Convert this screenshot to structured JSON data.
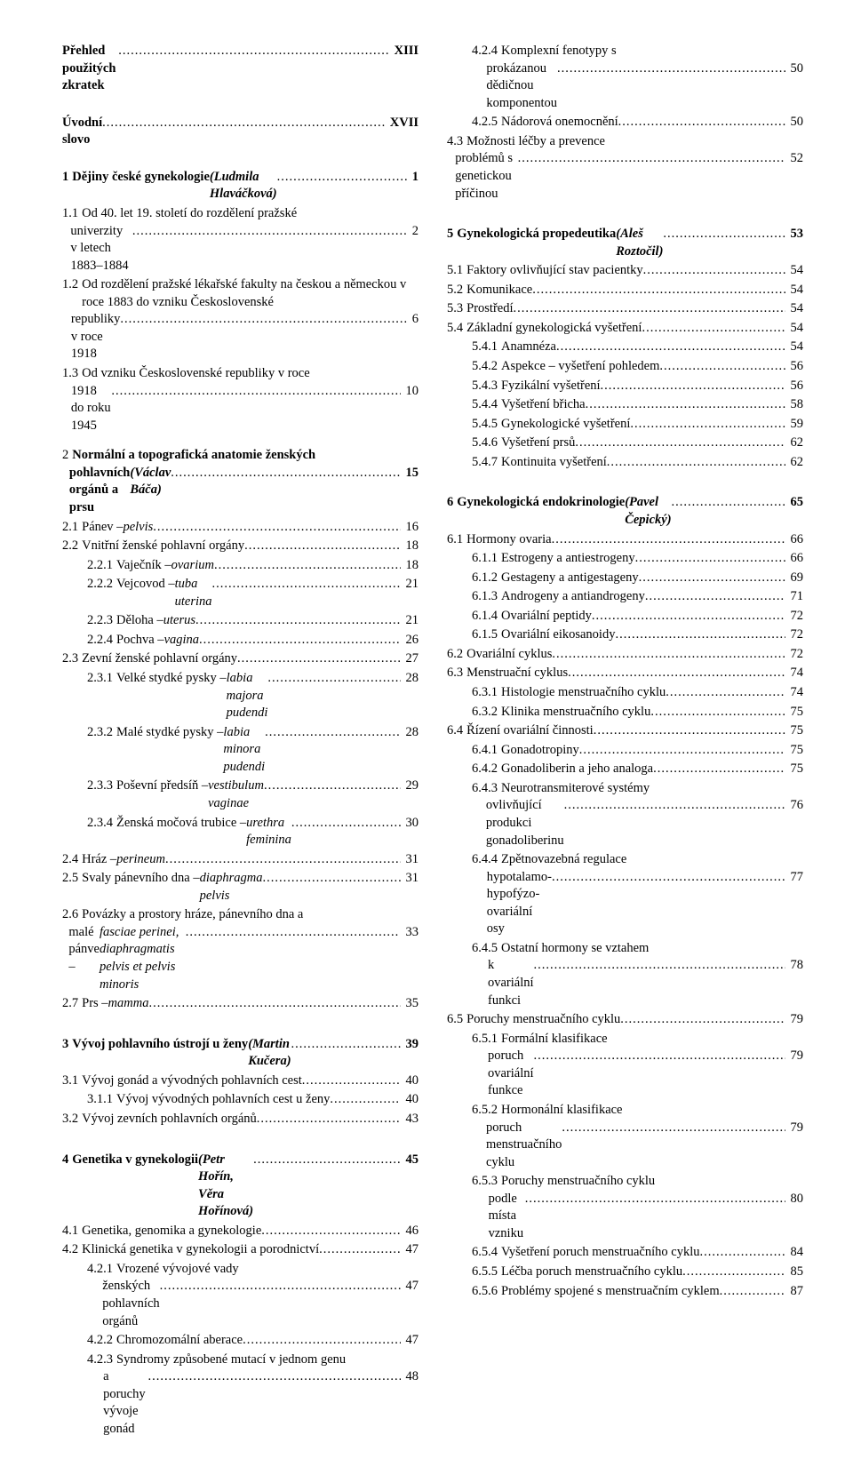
{
  "front_matter": [
    {
      "label": "Přehled použitých zkratek",
      "page": "XIII"
    },
    {
      "label": "Úvodní slovo",
      "page": "XVII"
    }
  ],
  "left_col": [
    {
      "type": "head",
      "num": "1",
      "title": "Dějiny české gynekologie",
      "italic": "(Ludmila Hlaváčková)",
      "page": "1",
      "indent": 0
    },
    {
      "num": "1.1",
      "title": "Od 40. let 19. století do rozdělení pražské univerzity v letech 1883–1884",
      "page": "2",
      "indent": 1,
      "wrap": true
    },
    {
      "num": "1.2",
      "title": "Od rozdělení pražské lékařské fakulty na českou a německou v roce 1883 do vzniku Československé republiky v roce 1918",
      "page": "6",
      "indent": 1,
      "wrap": true
    },
    {
      "num": "1.3",
      "title": "Od vzniku Československé republiky v roce 1918 do roku 1945",
      "page": "10",
      "indent": 1,
      "wrap": true
    },
    {
      "type": "spacer-md"
    },
    {
      "type": "head",
      "num": "2",
      "title": "Normální a topografická anatomie ženských pohlavních orgánů a prsu",
      "italic": "(Václav Báča)",
      "page": "15",
      "indent": 0,
      "wrap": true,
      "hang": "hang-small"
    },
    {
      "num": "2.1",
      "title": "Pánev – ",
      "italicTail": "pelvis",
      "page": "16",
      "indent": 1
    },
    {
      "num": "2.2",
      "title": "Vnitřní ženské pohlavní orgány",
      "page": "18",
      "indent": 1
    },
    {
      "num": "2.2.1",
      "title": "Vaječník – ",
      "italicTail": "ovarium",
      "page": "18",
      "indent": 2
    },
    {
      "num": "2.2.2",
      "title": "Vejcovod – ",
      "italicTail": "tuba uterina",
      "page": "21",
      "indent": 2
    },
    {
      "num": "2.2.3",
      "title": "Děloha – ",
      "italicTail": "uterus",
      "page": "21",
      "indent": 2
    },
    {
      "num": "2.2.4",
      "title": "Pochva – ",
      "italicTail": "vagina",
      "page": "26",
      "indent": 2
    },
    {
      "num": "2.3",
      "title": "Zevní ženské pohlavní orgány",
      "page": "27",
      "indent": 1
    },
    {
      "num": "2.3.1",
      "title": "Velké stydké pysky – ",
      "italicTail": "labia majora pudendi",
      "page": "28",
      "indent": 2
    },
    {
      "num": "2.3.2",
      "title": "Malé stydké pysky – ",
      "italicTail": "labia minora pudendi",
      "page": "28",
      "indent": 2
    },
    {
      "num": "2.3.3",
      "title": "Poševní předsíň – ",
      "italicTail": "vestibulum vaginae",
      "page": "29",
      "indent": 2
    },
    {
      "num": "2.3.4",
      "title": "Ženská močová trubice – ",
      "italicTail": "urethra feminina",
      "page": "30",
      "indent": 2
    },
    {
      "num": "2.4",
      "title": "Hráz – ",
      "italicTail": "perineum",
      "page": "31",
      "indent": 1
    },
    {
      "num": "2.5",
      "title": "Svaly pánevního dna – ",
      "italicTail": "diaphragma pelvis",
      "page": "31",
      "indent": 1
    },
    {
      "num": "2.6",
      "title": "Povázky a prostory hráze, pánevního dna a malé pánve – ",
      "italicTail": "fasciae perinei, diaphragmatis pelvis et pelvis minoris",
      "page": "33",
      "indent": 1,
      "wrap": true
    },
    {
      "num": "2.7",
      "title": "Prs – ",
      "italicTail": "mamma",
      "page": "35",
      "indent": 1
    },
    {
      "type": "spacer-md"
    },
    {
      "type": "head",
      "num": "3",
      "title": "Vývoj pohlavního ústrojí u ženy",
      "italic": "(Martin Kučera)",
      "page": "39",
      "indent": 0
    },
    {
      "num": "3.1",
      "title": "Vývoj gonád a vývodných pohlavních cest",
      "page": "40",
      "indent": 1
    },
    {
      "num": "3.1.1",
      "title": "Vývoj vývodných pohlavních cest u ženy",
      "page": "40",
      "indent": 2
    },
    {
      "num": "3.2",
      "title": "Vývoj zevních pohlavních orgánů",
      "page": "43",
      "indent": 1
    },
    {
      "type": "spacer-md"
    },
    {
      "type": "head",
      "num": "4",
      "title": "Genetika v gynekologii",
      "italic": "(Petr Hořín, Věra Hořínová)",
      "page": "45",
      "indent": 0
    },
    {
      "num": "4.1",
      "title": "Genetika, genomika a gynekologie",
      "page": "46",
      "indent": 1
    },
    {
      "num": "4.2",
      "title": "Klinická genetika v gynekologii a porodnictví",
      "page": "47",
      "indent": 1
    },
    {
      "num": "4.2.1",
      "title": "Vrozené vývojové vady ženských pohlavních orgánů",
      "page": "47",
      "indent": 2,
      "wrap": true
    },
    {
      "num": "4.2.2",
      "title": "Chromozomální aberace",
      "page": "47",
      "indent": 2
    },
    {
      "num": "4.2.3",
      "title": "Syndromy způsobené mutací v jednom genu a poruchy vývoje gonád",
      "page": "48",
      "indent": 2,
      "wrap": true
    }
  ],
  "right_col": [
    {
      "num": "4.2.4",
      "title": "Komplexní fenotypy s prokázanou dědičnou komponentou",
      "page": "50",
      "indent": 2,
      "wrap": true
    },
    {
      "num": "4.2.5",
      "title": "Nádorová onemocnění",
      "page": "50",
      "indent": 2
    },
    {
      "num": "4.3",
      "title": "Možnosti léčby a prevence problémů s genetickou příčinou",
      "page": "52",
      "indent": 1,
      "wrap": true
    },
    {
      "type": "spacer-md"
    },
    {
      "type": "head",
      "num": "5",
      "title": "Gynekologická propedeutika",
      "italic": "(Aleš Roztočil)",
      "page": "53",
      "indent": 0
    },
    {
      "num": "5.1",
      "title": "Faktory ovlivňující stav pacientky",
      "page": "54",
      "indent": 1
    },
    {
      "num": "5.2",
      "title": "Komunikace",
      "page": "54",
      "indent": 1
    },
    {
      "num": "5.3",
      "title": "Prostředí",
      "page": "54",
      "indent": 1
    },
    {
      "num": "5.4",
      "title": "Základní gynekologická vyšetření",
      "page": "54",
      "indent": 1
    },
    {
      "num": "5.4.1",
      "title": "Anamnéza",
      "page": "54",
      "indent": 2
    },
    {
      "num": "5.4.2",
      "title": "Aspekce – vyšetření pohledem",
      "page": "56",
      "indent": 2
    },
    {
      "num": "5.4.3",
      "title": "Fyzikální vyšetření",
      "page": "56",
      "indent": 2
    },
    {
      "num": "5.4.4",
      "title": "Vyšetření břicha",
      "page": "58",
      "indent": 2
    },
    {
      "num": "5.4.5",
      "title": "Gynekologické vyšetření",
      "page": "59",
      "indent": 2
    },
    {
      "num": "5.4.6",
      "title": "Vyšetření prsů",
      "page": "62",
      "indent": 2
    },
    {
      "num": "5.4.7",
      "title": "Kontinuita vyšetření",
      "page": "62",
      "indent": 2
    },
    {
      "type": "spacer-md"
    },
    {
      "type": "head",
      "num": "6",
      "title": "Gynekologická endokrinologie",
      "italic": "(Pavel Čepický)",
      "page": "65",
      "indent": 0
    },
    {
      "num": "6.1",
      "title": "Hormony ovaria",
      "page": "66",
      "indent": 1
    },
    {
      "num": "6.1.1",
      "title": "Estrogeny a antiestrogeny",
      "page": "66",
      "indent": 2
    },
    {
      "num": "6.1.2",
      "title": "Gestageny a antigestageny",
      "page": "69",
      "indent": 2
    },
    {
      "num": "6.1.3",
      "title": "Androgeny a antiandrogeny",
      "page": "71",
      "indent": 2
    },
    {
      "num": "6.1.4",
      "title": "Ovariální peptidy",
      "page": "72",
      "indent": 2
    },
    {
      "num": "6.1.5",
      "title": "Ovariální eikosanoidy",
      "page": "72",
      "indent": 2
    },
    {
      "num": "6.2",
      "title": "Ovariální cyklus",
      "page": "72",
      "indent": 1
    },
    {
      "num": "6.3",
      "title": "Menstruační cyklus",
      "page": "74",
      "indent": 1
    },
    {
      "num": "6.3.1",
      "title": "Histologie menstruačního cyklu",
      "page": "74",
      "indent": 2
    },
    {
      "num": "6.3.2",
      "title": "Klinika menstruačního cyklu",
      "page": "75",
      "indent": 2
    },
    {
      "num": "6.4",
      "title": "Řízení ovariální činnosti",
      "page": "75",
      "indent": 1
    },
    {
      "num": "6.4.1",
      "title": "Gonadotropiny",
      "page": "75",
      "indent": 2
    },
    {
      "num": "6.4.2",
      "title": "Gonadoliberin a jeho analoga",
      "page": "75",
      "indent": 2
    },
    {
      "num": "6.4.3",
      "title": "Neurotransmiterové systémy ovlivňující produkci gonadoliberinu",
      "page": "76",
      "indent": 2,
      "wrap": true
    },
    {
      "num": "6.4.4",
      "title": "Zpětnovazebná regulace hypotalamo-hypofýzo-ovariální osy",
      "page": "77",
      "indent": 2,
      "wrap": true
    },
    {
      "num": "6.4.5",
      "title": "Ostatní hormony se vztahem k ovariální funkci",
      "page": "78",
      "indent": 2,
      "wrap": true
    },
    {
      "num": "6.5",
      "title": "Poruchy menstruačního cyklu",
      "page": "79",
      "indent": 1
    },
    {
      "num": "6.5.1",
      "title": "Formální klasifikace poruch ovariální funkce",
      "page": "79",
      "indent": 2,
      "wrap": true
    },
    {
      "num": "6.5.2",
      "title": "Hormonální klasifikace poruch menstruačního cyklu",
      "page": "79",
      "indent": 2,
      "wrap": true
    },
    {
      "num": "6.5.3",
      "title": "Poruchy menstruačního cyklu podle místa vzniku",
      "page": "80",
      "indent": 2,
      "wrap": true
    },
    {
      "num": "6.5.4",
      "title": "Vyšetření poruch menstruačního cyklu",
      "page": "84",
      "indent": 2
    },
    {
      "num": "6.5.5",
      "title": "Léčba poruch menstruačního cyklu",
      "page": "85",
      "indent": 2
    },
    {
      "num": "6.5.6",
      "title": "Problémy spojené s menstruačním cyklem",
      "page": "87",
      "indent": 2
    }
  ]
}
